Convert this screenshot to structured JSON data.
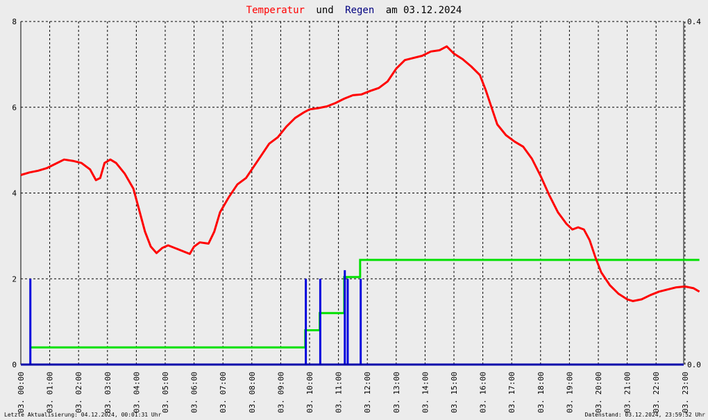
{
  "chart_data": {
    "type": "line",
    "title": {
      "part1": "Temperatur",
      "part2": "und",
      "part3": "Regen",
      "part4": "am 03.12.2024"
    },
    "colors": {
      "title_temp": "#ff0000",
      "title_rain": "#000080",
      "temperature": "#ff0000",
      "rain_sum": "#00e000",
      "rain_bar": "#0000dd",
      "zero_line": "#0000aa",
      "grid": "#000000"
    },
    "x_axis": {
      "range_hours": [
        0,
        23.5
      ],
      "ticks": [
        {
          "h": 0,
          "label": "03. 00:00"
        },
        {
          "h": 1,
          "label": "03. 01:00"
        },
        {
          "h": 2,
          "label": "03. 02:00"
        },
        {
          "h": 3,
          "label": "03. 03:00"
        },
        {
          "h": 4,
          "label": "03. 04:00"
        },
        {
          "h": 5,
          "label": "03. 05:00"
        },
        {
          "h": 6,
          "label": "03. 06:00"
        },
        {
          "h": 7,
          "label": "03. 07:00"
        },
        {
          "h": 8,
          "label": "03. 08:00"
        },
        {
          "h": 9,
          "label": "03. 09:00"
        },
        {
          "h": 10,
          "label": "03. 10:00"
        },
        {
          "h": 11,
          "label": "03. 11:00"
        },
        {
          "h": 12,
          "label": "03. 12:00"
        },
        {
          "h": 13,
          "label": "03. 13:00"
        },
        {
          "h": 14,
          "label": "03. 14:00"
        },
        {
          "h": 15,
          "label": "03. 15:00"
        },
        {
          "h": 16,
          "label": "03. 16:00"
        },
        {
          "h": 17,
          "label": "03. 17:00"
        },
        {
          "h": 18,
          "label": "03. 18:00"
        },
        {
          "h": 19,
          "label": "03. 19:00"
        },
        {
          "h": 20,
          "label": "03. 20:00"
        },
        {
          "h": 21,
          "label": "03. 21:00"
        },
        {
          "h": 22,
          "label": "03. 22:00"
        },
        {
          "h": 23,
          "label": "03. 23:00"
        }
      ]
    },
    "y_left": {
      "range": [
        0,
        8
      ],
      "ticks": [
        "0",
        "2",
        "4",
        "6",
        "8"
      ]
    },
    "y_right": {
      "range": [
        0,
        0.4
      ],
      "ticks": [
        {
          "v": 0,
          "label": "0.0"
        },
        {
          "v": 0.4,
          "label": "0.4"
        }
      ]
    },
    "grid": true,
    "temperature_series": [
      [
        0.0,
        4.42
      ],
      [
        0.3,
        4.48
      ],
      [
        0.6,
        4.52
      ],
      [
        0.9,
        4.58
      ],
      [
        1.2,
        4.68
      ],
      [
        1.5,
        4.78
      ],
      [
        1.8,
        4.75
      ],
      [
        2.1,
        4.7
      ],
      [
        2.4,
        4.55
      ],
      [
        2.6,
        4.3
      ],
      [
        2.75,
        4.35
      ],
      [
        2.9,
        4.7
      ],
      [
        3.1,
        4.78
      ],
      [
        3.3,
        4.7
      ],
      [
        3.6,
        4.45
      ],
      [
        3.9,
        4.1
      ],
      [
        4.1,
        3.6
      ],
      [
        4.3,
        3.1
      ],
      [
        4.5,
        2.75
      ],
      [
        4.7,
        2.6
      ],
      [
        4.9,
        2.72
      ],
      [
        5.1,
        2.78
      ],
      [
        5.4,
        2.7
      ],
      [
        5.7,
        2.62
      ],
      [
        5.85,
        2.58
      ],
      [
        6.0,
        2.75
      ],
      [
        6.2,
        2.85
      ],
      [
        6.5,
        2.82
      ],
      [
        6.7,
        3.1
      ],
      [
        6.9,
        3.55
      ],
      [
        7.2,
        3.9
      ],
      [
        7.5,
        4.2
      ],
      [
        7.8,
        4.35
      ],
      [
        8.0,
        4.55
      ],
      [
        8.3,
        4.85
      ],
      [
        8.6,
        5.15
      ],
      [
        8.9,
        5.3
      ],
      [
        9.2,
        5.55
      ],
      [
        9.5,
        5.75
      ],
      [
        9.8,
        5.88
      ],
      [
        10.0,
        5.95
      ],
      [
        10.3,
        5.98
      ],
      [
        10.6,
        6.02
      ],
      [
        10.9,
        6.1
      ],
      [
        11.2,
        6.2
      ],
      [
        11.5,
        6.28
      ],
      [
        11.8,
        6.3
      ],
      [
        12.1,
        6.38
      ],
      [
        12.4,
        6.45
      ],
      [
        12.7,
        6.6
      ],
      [
        13.0,
        6.9
      ],
      [
        13.3,
        7.1
      ],
      [
        13.6,
        7.15
      ],
      [
        13.9,
        7.2
      ],
      [
        14.2,
        7.3
      ],
      [
        14.5,
        7.33
      ],
      [
        14.75,
        7.42
      ],
      [
        15.0,
        7.25
      ],
      [
        15.3,
        7.12
      ],
      [
        15.6,
        6.95
      ],
      [
        15.9,
        6.75
      ],
      [
        16.1,
        6.4
      ],
      [
        16.3,
        6.0
      ],
      [
        16.5,
        5.6
      ],
      [
        16.8,
        5.35
      ],
      [
        17.1,
        5.2
      ],
      [
        17.4,
        5.08
      ],
      [
        17.7,
        4.8
      ],
      [
        18.0,
        4.4
      ],
      [
        18.3,
        3.95
      ],
      [
        18.6,
        3.55
      ],
      [
        18.9,
        3.28
      ],
      [
        19.1,
        3.15
      ],
      [
        19.3,
        3.2
      ],
      [
        19.5,
        3.15
      ],
      [
        19.7,
        2.9
      ],
      [
        19.9,
        2.5
      ],
      [
        20.1,
        2.15
      ],
      [
        20.4,
        1.85
      ],
      [
        20.7,
        1.65
      ],
      [
        21.0,
        1.52
      ],
      [
        21.2,
        1.48
      ],
      [
        21.5,
        1.52
      ],
      [
        21.8,
        1.62
      ],
      [
        22.1,
        1.7
      ],
      [
        22.4,
        1.75
      ],
      [
        22.7,
        1.8
      ],
      [
        23.0,
        1.82
      ],
      [
        23.3,
        1.78
      ],
      [
        23.5,
        1.7
      ]
    ],
    "rain_cumulative_steps": [
      [
        0.35,
        0.02
      ],
      [
        9.85,
        0.02
      ],
      [
        9.85,
        0.04
      ],
      [
        10.35,
        0.04
      ],
      [
        10.35,
        0.06
      ],
      [
        11.2,
        0.06
      ],
      [
        11.2,
        0.102
      ],
      [
        11.75,
        0.102
      ],
      [
        11.75,
        0.122
      ],
      [
        23.5,
        0.122
      ]
    ],
    "rain_bars": [
      [
        0.33,
        0.1
      ],
      [
        9.87,
        0.1
      ],
      [
        10.37,
        0.1
      ],
      [
        11.22,
        0.11
      ],
      [
        11.32,
        0.1
      ],
      [
        11.77,
        0.1
      ]
    ]
  },
  "footer": {
    "left": "Letzte Aktualisierung: 04.12.2024, 00:01:31 Uhr",
    "right": "Datenstand: 03.12.2024, 23:59:52 Uhr"
  }
}
